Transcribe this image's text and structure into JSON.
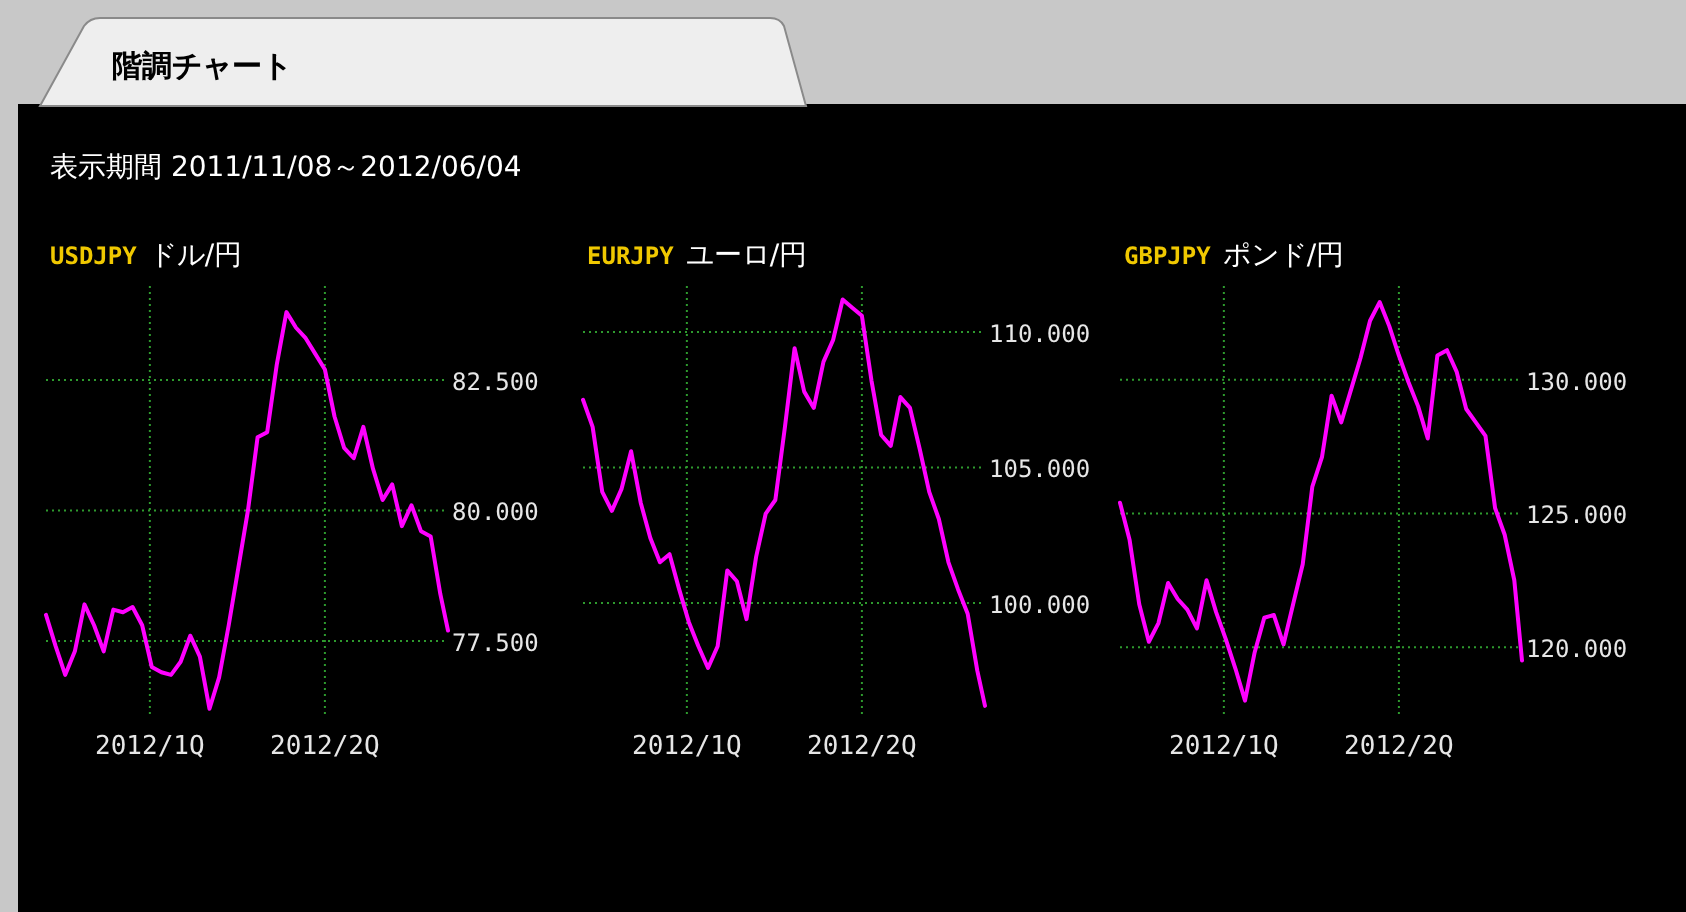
{
  "chart_data": [
    {
      "type": "other",
      "title": "階調チャート",
      "subtitle": "表示期間 2011/11/08～2012/06/04"
    },
    {
      "type": "line",
      "title": "USDJPY",
      "subtitle": "ドル/円",
      "color": "#ff00ff",
      "grid": true,
      "x": [
        "2011-11-08",
        "2011-11-13",
        "2011-11-18",
        "2011-11-23",
        "2011-11-28",
        "2011-12-03",
        "2011-12-08",
        "2011-12-13",
        "2011-12-18",
        "2011-12-23",
        "2011-12-28",
        "2012-01-02",
        "2012-01-07",
        "2012-01-12",
        "2012-01-17",
        "2012-01-22",
        "2012-01-27",
        "2012-02-01",
        "2012-02-06",
        "2012-02-11",
        "2012-02-16",
        "2012-02-21",
        "2012-02-26",
        "2012-03-02",
        "2012-03-07",
        "2012-03-12",
        "2012-03-17",
        "2012-03-22",
        "2012-03-27",
        "2012-04-01",
        "2012-04-06",
        "2012-04-11",
        "2012-04-16",
        "2012-04-21",
        "2012-04-26",
        "2012-05-01",
        "2012-05-06",
        "2012-05-11",
        "2012-05-16",
        "2012-05-21",
        "2012-05-26",
        "2012-05-31",
        "2012-06-04"
      ],
      "values": [
        78.0,
        77.4,
        76.85,
        77.3,
        78.2,
        77.8,
        77.3,
        78.1,
        78.05,
        78.15,
        77.8,
        77.0,
        76.9,
        76.85,
        77.1,
        77.6,
        77.2,
        76.2,
        76.8,
        77.8,
        78.9,
        80.0,
        81.4,
        81.5,
        82.8,
        83.8,
        83.5,
        83.3,
        83.0,
        82.7,
        81.8,
        81.2,
        81.0,
        81.6,
        80.8,
        80.2,
        80.5,
        79.7,
        80.1,
        79.6,
        79.5,
        78.4,
        77.7
      ],
      "xlim": [
        "2011-11-08",
        "2012-06-04"
      ],
      "xticks": [
        {
          "value": "2012-01-01",
          "label": "2012/1Q"
        },
        {
          "value": "2012-04-01",
          "label": "2012/2Q"
        }
      ],
      "ylim": [
        76.1,
        84.3
      ],
      "yticks": [
        {
          "value": 77.5,
          "label": "77.500"
        },
        {
          "value": 80,
          "label": "80.000"
        },
        {
          "value": 82.5,
          "label": "82.500"
        }
      ]
    },
    {
      "type": "line",
      "title": "EURJPY",
      "subtitle": "ユーロ/円",
      "color": "#ff00ff",
      "grid": true,
      "x": [
        "2011-11-08",
        "2011-11-13",
        "2011-11-18",
        "2011-11-23",
        "2011-11-28",
        "2011-12-03",
        "2011-12-08",
        "2011-12-13",
        "2011-12-18",
        "2011-12-23",
        "2011-12-28",
        "2012-01-02",
        "2012-01-07",
        "2012-01-12",
        "2012-01-17",
        "2012-01-22",
        "2012-01-27",
        "2012-02-01",
        "2012-02-06",
        "2012-02-11",
        "2012-02-16",
        "2012-02-21",
        "2012-02-26",
        "2012-03-02",
        "2012-03-07",
        "2012-03-12",
        "2012-03-17",
        "2012-03-22",
        "2012-03-27",
        "2012-04-01",
        "2012-04-06",
        "2012-04-11",
        "2012-04-16",
        "2012-04-21",
        "2012-04-26",
        "2012-05-01",
        "2012-05-06",
        "2012-05-11",
        "2012-05-16",
        "2012-05-21",
        "2012-05-26",
        "2012-05-31",
        "2012-06-04"
      ],
      "values": [
        107.5,
        106.5,
        104.1,
        103.4,
        104.2,
        105.6,
        103.7,
        102.4,
        101.5,
        101.8,
        100.5,
        99.3,
        98.4,
        97.6,
        98.4,
        101.2,
        100.8,
        99.4,
        101.7,
        103.3,
        103.8,
        106.5,
        109.4,
        107.8,
        107.2,
        108.9,
        109.7,
        111.2,
        110.9,
        110.6,
        108.2,
        106.2,
        105.8,
        107.6,
        107.2,
        105.7,
        104.1,
        103.1,
        101.5,
        100.5,
        99.6,
        97.5,
        96.2
      ],
      "xlim": [
        "2011-11-08",
        "2012-06-04"
      ],
      "xticks": [
        {
          "value": "2012-01-01",
          "label": "2012/1Q"
        },
        {
          "value": "2012-04-01",
          "label": "2012/2Q"
        }
      ],
      "ylim": [
        95.9,
        111.7
      ],
      "yticks": [
        {
          "value": 100,
          "label": "100.000"
        },
        {
          "value": 105,
          "label": "105.000"
        },
        {
          "value": 110,
          "label": "110.000"
        }
      ]
    },
    {
      "type": "line",
      "title": "GBPJPY",
      "subtitle": "ポンド/円",
      "color": "#ff00ff",
      "grid": true,
      "x": [
        "2011-11-08",
        "2011-11-13",
        "2011-11-18",
        "2011-11-23",
        "2011-11-28",
        "2011-12-03",
        "2011-12-08",
        "2011-12-13",
        "2011-12-18",
        "2011-12-23",
        "2011-12-28",
        "2012-01-02",
        "2012-01-07",
        "2012-01-12",
        "2012-01-17",
        "2012-01-22",
        "2012-01-27",
        "2012-02-01",
        "2012-02-06",
        "2012-02-11",
        "2012-02-16",
        "2012-02-21",
        "2012-02-26",
        "2012-03-02",
        "2012-03-07",
        "2012-03-12",
        "2012-03-17",
        "2012-03-22",
        "2012-03-27",
        "2012-04-01",
        "2012-04-06",
        "2012-04-11",
        "2012-04-16",
        "2012-04-21",
        "2012-04-26",
        "2012-05-01",
        "2012-05-06",
        "2012-05-11",
        "2012-05-16",
        "2012-05-21",
        "2012-05-26",
        "2012-05-31",
        "2012-06-04"
      ],
      "values": [
        125.4,
        124.0,
        121.6,
        120.2,
        120.9,
        122.4,
        121.8,
        121.4,
        120.7,
        122.5,
        121.3,
        120.3,
        119.2,
        118.0,
        119.8,
        121.1,
        121.2,
        120.1,
        121.6,
        123.1,
        126.0,
        127.1,
        129.4,
        128.4,
        129.6,
        130.8,
        132.2,
        132.9,
        132.0,
        130.9,
        129.9,
        129.0,
        127.8,
        130.9,
        131.1,
        130.3,
        128.9,
        128.4,
        127.9,
        125.2,
        124.2,
        122.5,
        119.5
      ],
      "xlim": [
        "2011-11-08",
        "2012-06-04"
      ],
      "xticks": [
        {
          "value": "2012-01-01",
          "label": "2012/1Q"
        },
        {
          "value": "2012-04-01",
          "label": "2012/2Q"
        }
      ],
      "ylim": [
        117.5,
        133.5
      ],
      "yticks": [
        {
          "value": 120,
          "label": "120.000"
        },
        {
          "value": 125,
          "label": "125.000"
        },
        {
          "value": 130,
          "label": "130.000"
        }
      ]
    }
  ]
}
